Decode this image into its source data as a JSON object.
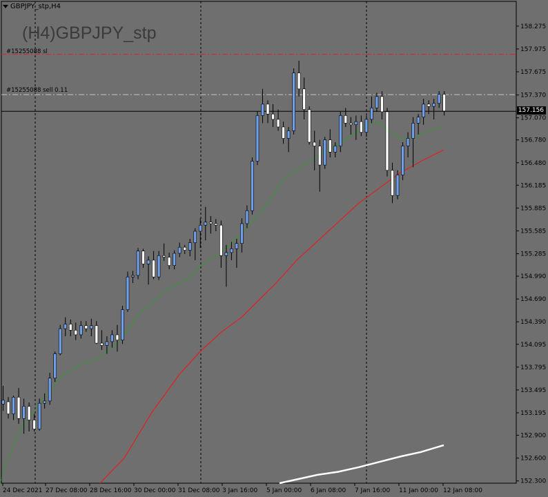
{
  "window": {
    "symbol_tab": "GBPJPY_stp,H4",
    "title": "(H4)GBPJPY_stp"
  },
  "orders": {
    "sl_label": "#15255088 sl",
    "entry_label": "#15255088 sell 0.11",
    "sl_price": 157.905,
    "entry_price": 157.375
  },
  "current_price": {
    "value": 157.156,
    "label": "157.156"
  },
  "colors": {
    "background": "#6f6f6f",
    "bull_candle": "#6f9fe8",
    "bear_candle": "#ffffff",
    "wick": "#000000",
    "ma_fast": "#00c000",
    "ma_slow": "#e02020",
    "ma_long": "#ffffff",
    "sl_line": "#e02020",
    "entry_line": "#c8c8c8"
  },
  "chart_data": {
    "type": "candlestick",
    "y_range": [
      152.27,
      158.6
    ],
    "y_ticks": [
      "158.275",
      "157.975",
      "157.675",
      "157.370",
      "157.070",
      "156.780",
      "156.480",
      "156.185",
      "155.885",
      "155.585",
      "155.285",
      "154.990",
      "154.690",
      "154.390",
      "154.095",
      "153.795",
      "153.495",
      "153.195",
      "152.900",
      "152.600",
      "152.300"
    ],
    "x_ticks": [
      "24 Dec 2021",
      "27 Dec 08:00",
      "28 Dec 16:00",
      "30 Dec 00:00",
      "31 Dec 08:00",
      "3 Jan 16:00",
      "5 Jan 00:00",
      "6 Jan 08:00",
      "7 Jan 16:00",
      "11 Jan 00:00",
      "12 Jan 08:00"
    ],
    "separators": [
      51,
      291,
      531
    ],
    "candles": [
      [
        153.31,
        153.55,
        153.22,
        153.36
      ],
      [
        153.34,
        153.4,
        153.12,
        153.18
      ],
      [
        153.18,
        153.42,
        153.1,
        153.4
      ],
      [
        153.4,
        153.52,
        153.05,
        153.12
      ],
      [
        153.12,
        153.38,
        152.92,
        153.28
      ],
      [
        153.28,
        153.33,
        152.95,
        153.1
      ],
      [
        153.1,
        153.18,
        152.95,
        152.98
      ],
      [
        152.98,
        153.38,
        152.96,
        153.32
      ],
      [
        153.32,
        153.45,
        153.25,
        153.35
      ],
      [
        153.35,
        153.72,
        153.3,
        153.65
      ],
      [
        153.65,
        154.0,
        153.6,
        153.97
      ],
      [
        153.97,
        154.35,
        153.95,
        154.3
      ],
      [
        154.3,
        154.45,
        154.2,
        154.36
      ],
      [
        154.36,
        154.42,
        154.2,
        154.28
      ],
      [
        154.28,
        154.38,
        154.15,
        154.22
      ],
      [
        154.22,
        154.4,
        154.17,
        154.34
      ],
      [
        154.34,
        154.4,
        154.26,
        154.3
      ],
      [
        154.3,
        154.43,
        154.2,
        154.34
      ],
      [
        154.34,
        154.4,
        154.1,
        154.11
      ],
      [
        154.11,
        154.28,
        154.02,
        154.08
      ],
      [
        154.08,
        154.2,
        153.97,
        154.13
      ],
      [
        154.13,
        154.28,
        154.05,
        154.22
      ],
      [
        154.22,
        154.35,
        154.0,
        154.15
      ],
      [
        154.15,
        154.6,
        154.1,
        154.55
      ],
      [
        154.55,
        155.05,
        154.52,
        154.98
      ],
      [
        154.98,
        155.06,
        154.9,
        155.0
      ],
      [
        155.0,
        155.36,
        154.95,
        155.32
      ],
      [
        155.32,
        155.35,
        155.1,
        155.15
      ],
      [
        155.15,
        155.25,
        154.88,
        155.2
      ],
      [
        155.2,
        155.32,
        154.95,
        154.98
      ],
      [
        154.98,
        155.32,
        154.94,
        155.26
      ],
      [
        155.26,
        155.42,
        155.19,
        155.24
      ],
      [
        155.24,
        155.3,
        155.08,
        155.13
      ],
      [
        155.13,
        155.33,
        155.08,
        155.29
      ],
      [
        155.29,
        155.43,
        155.24,
        155.37
      ],
      [
        155.37,
        155.4,
        155.28,
        155.33
      ],
      [
        155.33,
        155.48,
        155.25,
        155.43
      ],
      [
        155.43,
        155.62,
        155.2,
        155.58
      ],
      [
        155.58,
        155.75,
        155.36,
        155.66
      ],
      [
        155.66,
        155.9,
        155.46,
        155.7
      ],
      [
        155.7,
        155.78,
        155.55,
        155.68
      ],
      [
        155.68,
        155.74,
        155.58,
        155.66
      ],
      [
        155.66,
        155.72,
        155.1,
        155.26
      ],
      [
        155.26,
        155.4,
        154.85,
        155.3
      ],
      [
        155.3,
        155.44,
        155.2,
        155.35
      ],
      [
        155.35,
        155.48,
        155.1,
        155.42
      ],
      [
        155.42,
        155.75,
        155.3,
        155.68
      ],
      [
        155.68,
        155.92,
        155.62,
        155.85
      ],
      [
        155.85,
        156.55,
        155.8,
        156.5
      ],
      [
        156.5,
        157.15,
        156.45,
        157.1
      ],
      [
        157.1,
        157.45,
        157.0,
        157.25
      ],
      [
        157.25,
        157.3,
        157.0,
        157.12
      ],
      [
        157.12,
        157.25,
        156.95,
        157.05
      ],
      [
        157.05,
        157.18,
        156.9,
        156.95
      ],
      [
        156.95,
        157.02,
        156.73,
        156.8
      ],
      [
        156.8,
        156.95,
        156.62,
        156.9
      ],
      [
        156.9,
        157.72,
        156.85,
        157.66
      ],
      [
        157.66,
        157.82,
        157.35,
        157.45
      ],
      [
        157.45,
        157.6,
        157.05,
        157.18
      ],
      [
        157.18,
        157.22,
        156.72,
        156.75
      ],
      [
        156.75,
        156.9,
        156.38,
        156.7
      ],
      [
        156.7,
        156.78,
        156.1,
        156.45
      ],
      [
        156.45,
        156.82,
        156.4,
        156.78
      ],
      [
        156.78,
        156.92,
        156.55,
        156.62
      ],
      [
        156.62,
        156.75,
        156.55,
        156.7
      ],
      [
        156.7,
        157.15,
        156.62,
        157.1
      ],
      [
        157.1,
        157.2,
        156.95,
        157.0
      ],
      [
        157.0,
        157.08,
        156.85,
        156.98
      ],
      [
        156.98,
        157.1,
        156.78,
        157.02
      ],
      [
        157.02,
        157.1,
        156.83,
        156.88
      ],
      [
        156.88,
        157.1,
        156.82,
        157.05
      ],
      [
        157.05,
        157.35,
        157.0,
        157.2
      ],
      [
        157.2,
        157.4,
        157.15,
        157.35
      ],
      [
        157.35,
        157.42,
        157.05,
        157.15
      ],
      [
        157.15,
        157.2,
        156.3,
        156.38
      ],
      [
        156.38,
        156.48,
        155.95,
        156.05
      ],
      [
        156.05,
        156.38,
        156.0,
        156.32
      ],
      [
        156.32,
        156.75,
        156.25,
        156.7
      ],
      [
        156.7,
        156.88,
        156.55,
        156.8
      ],
      [
        156.8,
        157.08,
        156.42,
        157.0
      ],
      [
        157.0,
        157.12,
        156.85,
        157.08
      ],
      [
        157.08,
        157.32,
        156.98,
        157.25
      ],
      [
        157.25,
        157.3,
        157.12,
        157.22
      ],
      [
        157.22,
        157.32,
        157.05,
        157.26
      ],
      [
        157.26,
        157.42,
        157.2,
        157.38
      ],
      [
        157.38,
        157.42,
        157.1,
        157.16
      ]
    ],
    "ma_fast": [
      [
        0,
        152.27
      ],
      [
        12,
        152.6
      ],
      [
        30,
        152.98
      ],
      [
        60,
        153.35
      ],
      [
        90,
        153.68
      ],
      [
        120,
        153.85
      ],
      [
        140,
        153.9
      ],
      [
        170,
        154.1
      ],
      [
        200,
        154.48
      ],
      [
        240,
        154.8
      ],
      [
        270,
        154.95
      ],
      [
        290,
        155.12
      ],
      [
        320,
        155.3
      ],
      [
        350,
        155.55
      ],
      [
        380,
        155.85
      ],
      [
        410,
        156.25
      ],
      [
        440,
        156.45
      ],
      [
        470,
        156.62
      ],
      [
        500,
        156.78
      ],
      [
        530,
        156.98
      ],
      [
        550,
        157.02
      ],
      [
        560,
        156.92
      ],
      [
        580,
        156.8
      ],
      [
        600,
        156.8
      ],
      [
        620,
        156.9
      ],
      [
        640,
        156.95
      ]
    ],
    "ma_slow": [
      [
        145,
        152.27
      ],
      [
        180,
        152.6
      ],
      [
        220,
        153.2
      ],
      [
        260,
        153.7
      ],
      [
        290,
        154.0
      ],
      [
        320,
        154.25
      ],
      [
        350,
        154.45
      ],
      [
        380,
        154.72
      ],
      [
        400,
        154.9
      ],
      [
        430,
        155.2
      ],
      [
        460,
        155.45
      ],
      [
        490,
        155.7
      ],
      [
        520,
        155.95
      ],
      [
        550,
        156.15
      ],
      [
        580,
        156.35
      ],
      [
        610,
        156.5
      ],
      [
        643,
        156.65
      ]
    ],
    "ma_long": [
      [
        405,
        152.27
      ],
      [
        430,
        152.32
      ],
      [
        460,
        152.38
      ],
      [
        490,
        152.42
      ],
      [
        520,
        152.48
      ],
      [
        550,
        152.55
      ],
      [
        580,
        152.62
      ],
      [
        610,
        152.68
      ],
      [
        643,
        152.77
      ]
    ]
  }
}
